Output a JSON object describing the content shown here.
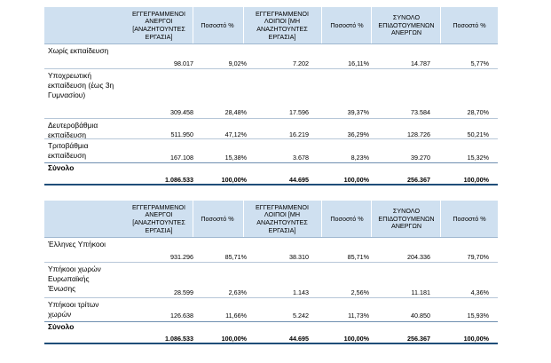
{
  "table1": {
    "headers": [
      "ΕΓΓΕΓΡΑΜΜΕΝΟΙ ΑΝΕΡΓΟΙ [ΑΝΑΖΗΤΟΥΝΤΕΣ ΕΡΓΑΣΙΑ]",
      "Ποσοστό %",
      "ΕΓΓΕΓΡΑΜΜΕΝΟΙ ΛΟΙΠΟΙ [ΜΗ ΑΝΑΖΗΤΟΥΝΤΕΣ ΕΡΓΑΣΙΑ]",
      "Ποσοστό %",
      "ΣΥΝΟΛΟ ΕΠΙΔΟΤΟΥΜΕΝΩΝ ΑΝΕΡΓΩΝ",
      "Ποσοστό %"
    ],
    "rows": [
      {
        "label": "Χωρίς εκπαίδευση",
        "values": [
          "98.017",
          "9,02%",
          "7.202",
          "16,11%",
          "14.787",
          "5,77%"
        ]
      },
      {
        "label": "Υποχρεωτική εκπαίδευση (έως 3η Γυμνασίου)",
        "values": [
          "309.458",
          "28,48%",
          "17.596",
          "39,37%",
          "73.584",
          "28,70%"
        ]
      },
      {
        "label": "Δευτεροβάθμια εκπαίδευση",
        "values": [
          "511.950",
          "47,12%",
          "16.219",
          "36,29%",
          "128.726",
          "50,21%"
        ]
      },
      {
        "label": "Τριτοβάθμια εκπαίδευση",
        "values": [
          "167.108",
          "15,38%",
          "3.678",
          "8,23%",
          "39.270",
          "15,32%"
        ]
      }
    ],
    "total": {
      "label": "Σύνολο",
      "values": [
        "1.086.533",
        "100,00%",
        "44.695",
        "100,00%",
        "256.367",
        "100,00%"
      ]
    }
  },
  "table2": {
    "headers": [
      "ΕΓΓΕΓΡΑΜΜΕΝΟΙ ΑΝΕΡΓΟΙ [ΑΝΑΖΗΤΟΥΝΤΕΣ ΕΡΓΑΣΙΑ]",
      "Ποσοστό %",
      "ΕΓΓΕΓΡΑΜΜΕΝΟΙ ΛΟΙΠΟΙ [ΜΗ ΑΝΑΖΗΤΟΥΝΤΕΣ ΕΡΓΑΣΙΑ]",
      "Ποσοστό %",
      "ΣΥΝΟΛΟ ΕΠΙΔΟΤΟΥΜΕΝΩΝ ΑΝΕΡΓΩΝ",
      "Ποσοστό %"
    ],
    "rows": [
      {
        "label": "Έλληνες Υπήκοοι",
        "values": [
          "931.296",
          "85,71%",
          "38.310",
          "85,71%",
          "204.336",
          "79,70%"
        ]
      },
      {
        "label": "Υπήκοοι χωρών Ευρωπαϊκής Ένωσης",
        "values": [
          "28.599",
          "2,63%",
          "1.143",
          "2,56%",
          "11.181",
          "4,36%"
        ]
      },
      {
        "label": "Υπήκοοι τρίτων χωρών",
        "values": [
          "126.638",
          "11,66%",
          "5.242",
          "11,73%",
          "40.850",
          "15,93%"
        ]
      }
    ],
    "total": {
      "label": "Σύνολο",
      "values": [
        "1.086.533",
        "100,00%",
        "44.695",
        "100,00%",
        "256.367",
        "100,00%"
      ]
    }
  },
  "colors": {
    "header_bg": "#cfe0f0",
    "rule": "#b7c7d8",
    "total_rule": "#1f4e79"
  }
}
